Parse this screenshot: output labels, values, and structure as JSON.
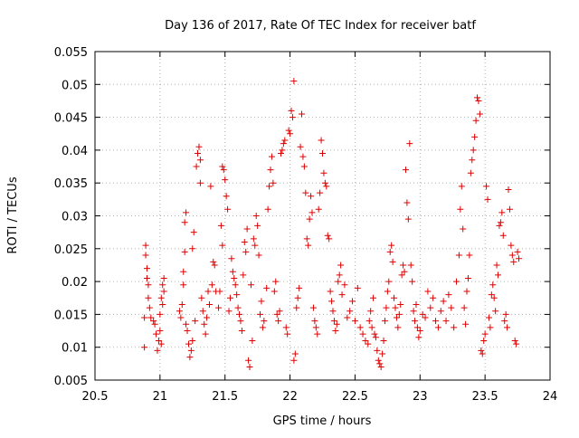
{
  "chart_data": {
    "type": "scatter",
    "title": "Day 136 of 2017, Rate Of TEC Index for receiver batf",
    "xlabel": "GPS time / hours",
    "ylabel": "ROTI / TECUs",
    "xlim": [
      20.5,
      24
    ],
    "ylim": [
      0.005,
      0.055
    ],
    "x_ticks": [
      20.5,
      21,
      21.5,
      22,
      22.5,
      23,
      23.5,
      24
    ],
    "x_tick_labels": [
      "20.5",
      "21",
      "21.5",
      "22",
      "22.5",
      "23",
      "23.5",
      "24"
    ],
    "y_ticks": [
      0.005,
      0.01,
      0.015,
      0.02,
      0.025,
      0.03,
      0.035,
      0.04,
      0.045,
      0.05,
      0.055
    ],
    "y_tick_labels": [
      "0.005",
      "0.01",
      "0.015",
      "0.02",
      "0.025",
      "0.03",
      "0.035",
      "0.04",
      "0.045",
      "0.05",
      "0.055"
    ],
    "grid": true,
    "marker": "plus",
    "color": "#e00000",
    "series": [
      {
        "points": [
          [
            20.88,
            0.01
          ],
          [
            20.88,
            0.0145
          ],
          [
            20.89,
            0.0255
          ],
          [
            20.89,
            0.024
          ],
          [
            20.9,
            0.022
          ],
          [
            20.9,
            0.0205
          ],
          [
            20.91,
            0.0195
          ],
          [
            20.91,
            0.0175
          ],
          [
            20.92,
            0.016
          ],
          [
            20.93,
            0.0145
          ],
          [
            20.95,
            0.014
          ],
          [
            20.96,
            0.0135
          ],
          [
            20.97,
            0.012
          ],
          [
            20.98,
            0.0095
          ],
          [
            20.99,
            0.011
          ],
          [
            21.0,
            0.0125
          ],
          [
            21.01,
            0.0105
          ],
          [
            21.0,
            0.015
          ],
          [
            21.01,
            0.0175
          ],
          [
            21.02,
            0.0195
          ],
          [
            21.03,
            0.0205
          ],
          [
            21.03,
            0.0185
          ],
          [
            21.02,
            0.0165
          ],
          [
            21.15,
            0.0155
          ],
          [
            21.16,
            0.0145
          ],
          [
            21.17,
            0.0165
          ],
          [
            21.18,
            0.0195
          ],
          [
            21.18,
            0.0215
          ],
          [
            21.19,
            0.0245
          ],
          [
            21.19,
            0.029
          ],
          [
            21.2,
            0.0305
          ],
          [
            21.2,
            0.0135
          ],
          [
            21.21,
            0.0125
          ],
          [
            21.22,
            0.0105
          ],
          [
            21.23,
            0.0085
          ],
          [
            21.24,
            0.0095
          ],
          [
            21.25,
            0.011
          ],
          [
            21.25,
            0.025
          ],
          [
            21.26,
            0.0275
          ],
          [
            21.27,
            0.014
          ],
          [
            21.28,
            0.0375
          ],
          [
            21.29,
            0.0395
          ],
          [
            21.3,
            0.0405
          ],
          [
            21.31,
            0.0385
          ],
          [
            21.31,
            0.035
          ],
          [
            21.32,
            0.0175
          ],
          [
            21.33,
            0.0155
          ],
          [
            21.34,
            0.0135
          ],
          [
            21.35,
            0.012
          ],
          [
            21.36,
            0.0145
          ],
          [
            21.37,
            0.0185
          ],
          [
            21.38,
            0.0165
          ],
          [
            21.39,
            0.0345
          ],
          [
            21.4,
            0.0195
          ],
          [
            21.41,
            0.023
          ],
          [
            21.42,
            0.0225
          ],
          [
            21.43,
            0.0185
          ],
          [
            21.45,
            0.016
          ],
          [
            21.46,
            0.0185
          ],
          [
            21.47,
            0.0285
          ],
          [
            21.48,
            0.0255
          ],
          [
            21.48,
            0.0375
          ],
          [
            21.49,
            0.037
          ],
          [
            21.5,
            0.0355
          ],
          [
            21.51,
            0.033
          ],
          [
            21.52,
            0.031
          ],
          [
            21.53,
            0.0155
          ],
          [
            21.54,
            0.0175
          ],
          [
            21.55,
            0.0235
          ],
          [
            21.56,
            0.0215
          ],
          [
            21.57,
            0.0205
          ],
          [
            21.58,
            0.0195
          ],
          [
            21.59,
            0.018
          ],
          [
            21.6,
            0.016
          ],
          [
            21.61,
            0.015
          ],
          [
            21.62,
            0.014
          ],
          [
            21.63,
            0.0125
          ],
          [
            21.64,
            0.021
          ],
          [
            21.65,
            0.026
          ],
          [
            21.66,
            0.0245
          ],
          [
            21.67,
            0.028
          ],
          [
            21.68,
            0.008
          ],
          [
            21.69,
            0.007
          ],
          [
            21.7,
            0.0195
          ],
          [
            21.71,
            0.011
          ],
          [
            21.72,
            0.0265
          ],
          [
            21.73,
            0.0255
          ],
          [
            21.74,
            0.03
          ],
          [
            21.75,
            0.0285
          ],
          [
            21.76,
            0.024
          ],
          [
            21.77,
            0.015
          ],
          [
            21.78,
            0.017
          ],
          [
            21.79,
            0.013
          ],
          [
            21.8,
            0.014
          ],
          [
            21.82,
            0.019
          ],
          [
            21.83,
            0.031
          ],
          [
            21.84,
            0.0345
          ],
          [
            21.85,
            0.037
          ],
          [
            21.86,
            0.039
          ],
          [
            21.87,
            0.035
          ],
          [
            21.88,
            0.0185
          ],
          [
            21.89,
            0.02
          ],
          [
            21.9,
            0.015
          ],
          [
            21.91,
            0.014
          ],
          [
            21.92,
            0.0155
          ],
          [
            21.93,
            0.0395
          ],
          [
            21.94,
            0.04
          ],
          [
            21.95,
            0.041
          ],
          [
            21.96,
            0.0415
          ],
          [
            21.97,
            0.013
          ],
          [
            21.98,
            0.012
          ],
          [
            21.99,
            0.043
          ],
          [
            22.0,
            0.0425
          ],
          [
            22.01,
            0.046
          ],
          [
            22.02,
            0.045
          ],
          [
            22.03,
            0.0505
          ],
          [
            22.03,
            0.008
          ],
          [
            22.04,
            0.009
          ],
          [
            22.05,
            0.016
          ],
          [
            22.06,
            0.0175
          ],
          [
            22.07,
            0.019
          ],
          [
            22.08,
            0.0405
          ],
          [
            22.09,
            0.0455
          ],
          [
            22.1,
            0.039
          ],
          [
            22.11,
            0.0375
          ],
          [
            22.12,
            0.0335
          ],
          [
            22.13,
            0.0265
          ],
          [
            22.14,
            0.0255
          ],
          [
            22.15,
            0.0295
          ],
          [
            22.16,
            0.033
          ],
          [
            22.17,
            0.0305
          ],
          [
            22.18,
            0.016
          ],
          [
            22.19,
            0.014
          ],
          [
            22.2,
            0.013
          ],
          [
            22.21,
            0.012
          ],
          [
            22.22,
            0.031
          ],
          [
            22.23,
            0.0335
          ],
          [
            22.24,
            0.0415
          ],
          [
            22.25,
            0.0395
          ],
          [
            22.26,
            0.0365
          ],
          [
            22.27,
            0.035
          ],
          [
            22.28,
            0.0345
          ],
          [
            22.29,
            0.027
          ],
          [
            22.3,
            0.0265
          ],
          [
            22.31,
            0.0185
          ],
          [
            22.32,
            0.017
          ],
          [
            22.33,
            0.0155
          ],
          [
            22.34,
            0.014
          ],
          [
            22.35,
            0.0125
          ],
          [
            22.36,
            0.0135
          ],
          [
            22.37,
            0.02
          ],
          [
            22.38,
            0.021
          ],
          [
            22.39,
            0.0225
          ],
          [
            22.4,
            0.018
          ],
          [
            22.42,
            0.0195
          ],
          [
            22.44,
            0.0145
          ],
          [
            22.46,
            0.0155
          ],
          [
            22.48,
            0.017
          ],
          [
            22.5,
            0.014
          ],
          [
            22.52,
            0.019
          ],
          [
            22.54,
            0.013
          ],
          [
            22.56,
            0.012
          ],
          [
            22.58,
            0.011
          ],
          [
            22.6,
            0.0105
          ],
          [
            22.61,
            0.014
          ],
          [
            22.62,
            0.0155
          ],
          [
            22.63,
            0.013
          ],
          [
            22.64,
            0.0175
          ],
          [
            22.65,
            0.012
          ],
          [
            22.66,
            0.0115
          ],
          [
            22.67,
            0.0095
          ],
          [
            22.68,
            0.008
          ],
          [
            22.69,
            0.0075
          ],
          [
            22.7,
            0.007
          ],
          [
            22.71,
            0.009
          ],
          [
            22.72,
            0.011
          ],
          [
            22.73,
            0.014
          ],
          [
            22.74,
            0.016
          ],
          [
            22.75,
            0.0185
          ],
          [
            22.76,
            0.02
          ],
          [
            22.77,
            0.0245
          ],
          [
            22.78,
            0.0255
          ],
          [
            22.79,
            0.023
          ],
          [
            22.8,
            0.0175
          ],
          [
            22.81,
            0.016
          ],
          [
            22.82,
            0.0145
          ],
          [
            22.83,
            0.013
          ],
          [
            22.84,
            0.015
          ],
          [
            22.85,
            0.0165
          ],
          [
            22.86,
            0.021
          ],
          [
            22.87,
            0.0225
          ],
          [
            22.88,
            0.0215
          ],
          [
            22.89,
            0.037
          ],
          [
            22.9,
            0.032
          ],
          [
            22.91,
            0.0295
          ],
          [
            22.92,
            0.041
          ],
          [
            22.93,
            0.0225
          ],
          [
            22.94,
            0.02
          ],
          [
            22.95,
            0.0155
          ],
          [
            22.96,
            0.014
          ],
          [
            22.97,
            0.0165
          ],
          [
            22.98,
            0.013
          ],
          [
            22.99,
            0.0115
          ],
          [
            23.0,
            0.0125
          ],
          [
            23.02,
            0.015
          ],
          [
            23.04,
            0.0145
          ],
          [
            23.06,
            0.0185
          ],
          [
            23.08,
            0.016
          ],
          [
            23.1,
            0.0175
          ],
          [
            23.12,
            0.014
          ],
          [
            23.14,
            0.013
          ],
          [
            23.16,
            0.0155
          ],
          [
            23.18,
            0.017
          ],
          [
            23.2,
            0.014
          ],
          [
            23.22,
            0.018
          ],
          [
            23.24,
            0.016
          ],
          [
            23.26,
            0.013
          ],
          [
            23.28,
            0.02
          ],
          [
            23.3,
            0.024
          ],
          [
            23.31,
            0.031
          ],
          [
            23.32,
            0.0345
          ],
          [
            23.33,
            0.028
          ],
          [
            23.34,
            0.016
          ],
          [
            23.35,
            0.0135
          ],
          [
            23.36,
            0.0185
          ],
          [
            23.37,
            0.0205
          ],
          [
            23.38,
            0.024
          ],
          [
            23.39,
            0.0365
          ],
          [
            23.4,
            0.0385
          ],
          [
            23.41,
            0.04
          ],
          [
            23.42,
            0.042
          ],
          [
            23.43,
            0.0445
          ],
          [
            23.44,
            0.048
          ],
          [
            23.45,
            0.0475
          ],
          [
            23.46,
            0.0455
          ],
          [
            23.47,
            0.0095
          ],
          [
            23.48,
            0.009
          ],
          [
            23.49,
            0.011
          ],
          [
            23.5,
            0.012
          ],
          [
            23.51,
            0.0345
          ],
          [
            23.52,
            0.0325
          ],
          [
            23.53,
            0.0145
          ],
          [
            23.54,
            0.013
          ],
          [
            23.55,
            0.018
          ],
          [
            23.56,
            0.0195
          ],
          [
            23.57,
            0.0175
          ],
          [
            23.58,
            0.0155
          ],
          [
            23.59,
            0.0225
          ],
          [
            23.6,
            0.021
          ],
          [
            23.61,
            0.0285
          ],
          [
            23.62,
            0.029
          ],
          [
            23.63,
            0.0305
          ],
          [
            23.64,
            0.027
          ],
          [
            23.65,
            0.014
          ],
          [
            23.66,
            0.015
          ],
          [
            23.67,
            0.013
          ],
          [
            23.68,
            0.034
          ],
          [
            23.69,
            0.031
          ],
          [
            23.7,
            0.0255
          ],
          [
            23.71,
            0.024
          ],
          [
            23.72,
            0.023
          ],
          [
            23.73,
            0.011
          ],
          [
            23.74,
            0.0105
          ],
          [
            23.75,
            0.0245
          ],
          [
            23.76,
            0.0235
          ]
        ]
      }
    ]
  }
}
